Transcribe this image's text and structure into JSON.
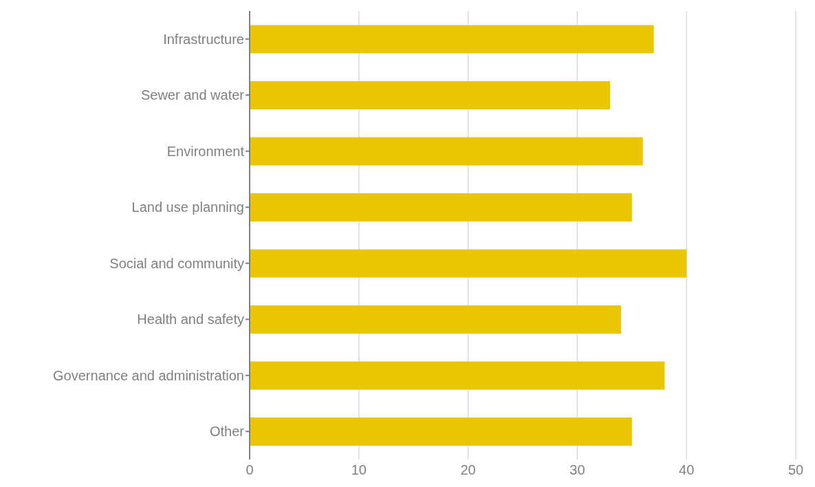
{
  "chart_data": {
    "type": "bar",
    "orientation": "horizontal",
    "categories": [
      "Infrastructure",
      "Sewer and water",
      "Environment",
      "Land use planning",
      "Social and community",
      "Health and safety",
      "Governance and administration",
      "Other"
    ],
    "values": [
      37,
      33,
      36,
      35,
      40,
      34,
      38,
      35
    ],
    "color": "#eac600",
    "xlim": [
      0,
      50
    ],
    "xticks": [
      0,
      10,
      20,
      30,
      40,
      50
    ],
    "grid": "x",
    "legend": false
  }
}
